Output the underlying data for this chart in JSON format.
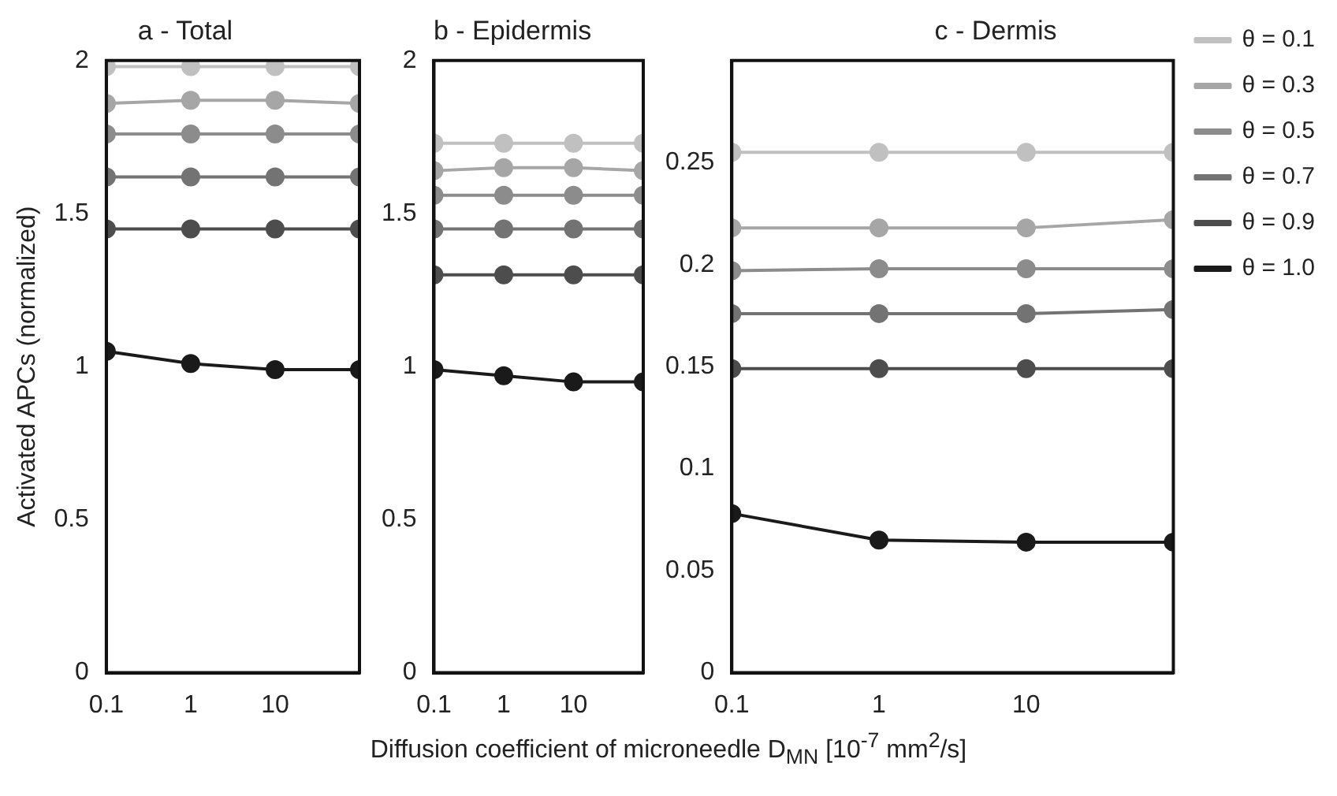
{
  "chart_data": [
    {
      "type": "line",
      "title": "a - Total",
      "ylabel": "Activated APCs (normalized)",
      "x": [
        0.1,
        1,
        10,
        100
      ],
      "log": "x",
      "xlim": [
        0.1,
        100
      ],
      "xticks": [
        0.1,
        1,
        10
      ],
      "ylim": [
        0,
        2
      ],
      "yticks": [
        0,
        0.5,
        1,
        1.5,
        2
      ],
      "grid": false,
      "legend": false,
      "marker": "circle",
      "line_style": "solid",
      "series": [
        {
          "color": "#c0c0c0",
          "values": [
            1.98,
            1.98,
            1.98,
            1.98
          ]
        },
        {
          "color": "#a6a6a6",
          "values": [
            1.86,
            1.87,
            1.87,
            1.86
          ]
        },
        {
          "color": "#8c8c8c",
          "values": [
            1.76,
            1.76,
            1.76,
            1.76
          ]
        },
        {
          "color": "#737373",
          "values": [
            1.62,
            1.62,
            1.62,
            1.62
          ]
        },
        {
          "color": "#4d4d4d",
          "values": [
            1.45,
            1.45,
            1.45,
            1.45
          ]
        },
        {
          "color": "#1a1a1a",
          "values": [
            1.05,
            1.01,
            0.99,
            0.99
          ]
        }
      ]
    },
    {
      "type": "line",
      "title": "b - Epidermis",
      "xlabel": "Diffusion coefficient of microneedle D$_{MN}$ [10$^{-7}$ mm$^{2}$/s]",
      "x": [
        0.1,
        1,
        10,
        100
      ],
      "log": "x",
      "xlim": [
        0.1,
        100
      ],
      "xticks": [
        0.1,
        1,
        10
      ],
      "ylim": [
        0,
        2
      ],
      "yticks": [
        0,
        0.5,
        1,
        1.5,
        2
      ],
      "grid": false,
      "legend": false,
      "marker": "circle",
      "line_style": "solid",
      "series": [
        {
          "color": "#c0c0c0",
          "values": [
            1.73,
            1.73,
            1.73,
            1.73
          ]
        },
        {
          "color": "#a6a6a6",
          "values": [
            1.64,
            1.65,
            1.65,
            1.64
          ]
        },
        {
          "color": "#8c8c8c",
          "values": [
            1.56,
            1.56,
            1.56,
            1.56
          ]
        },
        {
          "color": "#737373",
          "values": [
            1.45,
            1.45,
            1.45,
            1.45
          ]
        },
        {
          "color": "#4d4d4d",
          "values": [
            1.3,
            1.3,
            1.3,
            1.3
          ]
        },
        {
          "color": "#1a1a1a",
          "values": [
            0.99,
            0.97,
            0.95,
            0.95
          ]
        }
      ]
    },
    {
      "type": "line",
      "title": "c - Dermis",
      "x": [
        0.1,
        1,
        10,
        100
      ],
      "log": "x",
      "xlim": [
        0.1,
        100
      ],
      "xticks": [
        0.1,
        1,
        10
      ],
      "ylim": [
        0,
        0.3
      ],
      "yticks": [
        0,
        0.05,
        0.1,
        0.15,
        0.2,
        0.25
      ],
      "grid": false,
      "legend": "right",
      "marker": "circle",
      "line_style": "solid",
      "series": [
        {
          "name": "θ = 0.1",
          "color": "#c0c0c0",
          "values": [
            0.255,
            0.255,
            0.255,
            0.255
          ]
        },
        {
          "name": "θ = 0.3",
          "color": "#a6a6a6",
          "values": [
            0.218,
            0.218,
            0.218,
            0.222
          ]
        },
        {
          "name": "θ = 0.5",
          "color": "#8c8c8c",
          "values": [
            0.197,
            0.198,
            0.198,
            0.198
          ]
        },
        {
          "name": "θ = 0.7",
          "color": "#737373",
          "values": [
            0.176,
            0.176,
            0.176,
            0.178
          ]
        },
        {
          "name": "θ = 0.9",
          "color": "#4d4d4d",
          "values": [
            0.149,
            0.149,
            0.149,
            0.149
          ]
        },
        {
          "name": "θ = 1.0",
          "color": "#1a1a1a",
          "values": [
            0.078,
            0.065,
            0.064,
            0.064
          ]
        }
      ]
    }
  ]
}
